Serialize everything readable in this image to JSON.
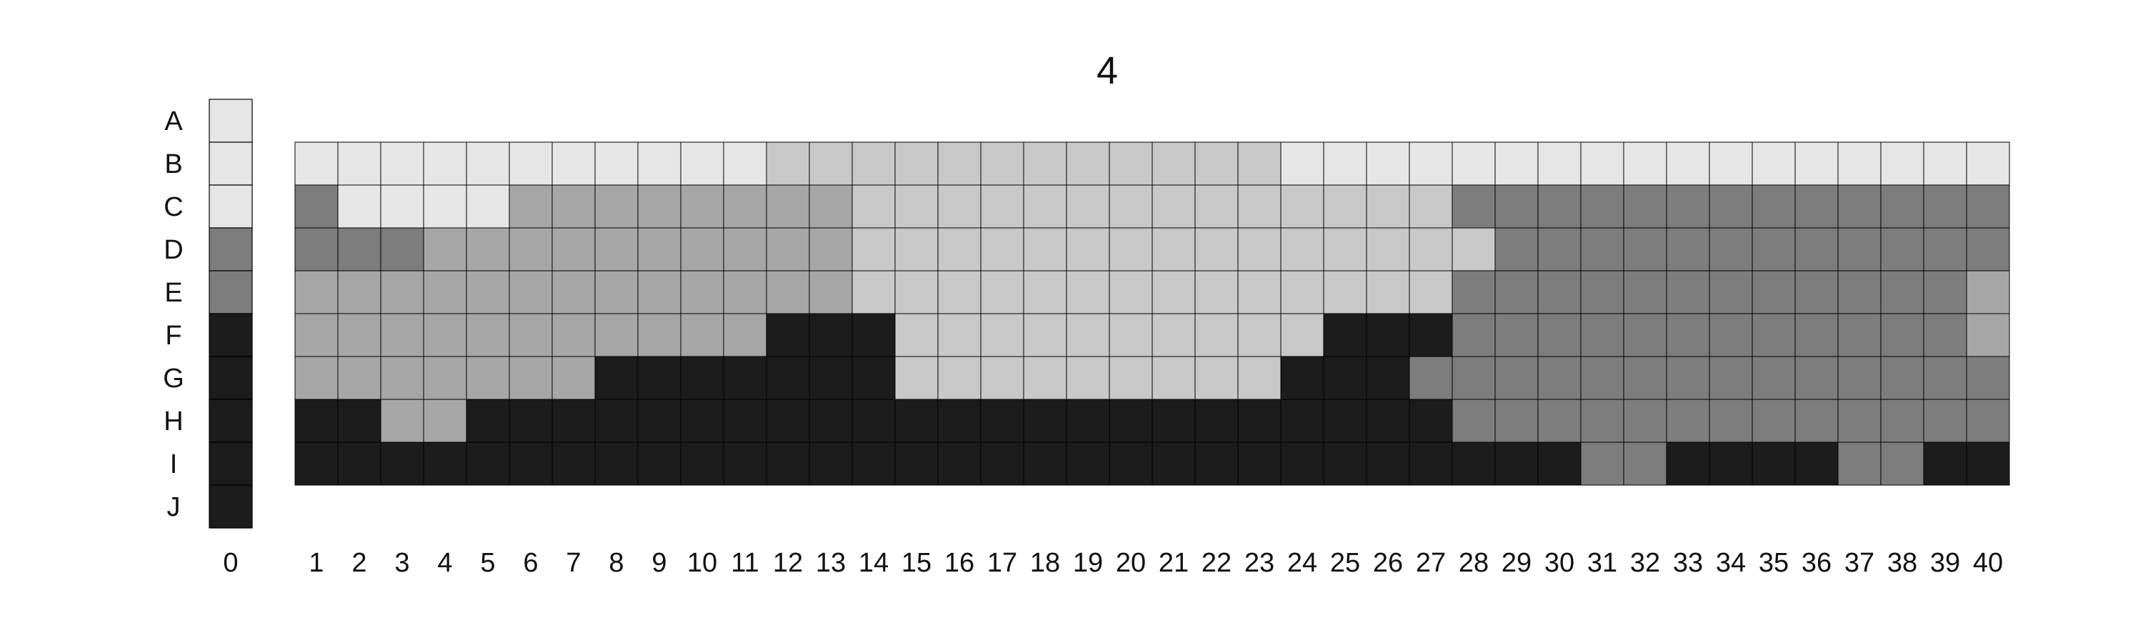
{
  "chart_data": {
    "type": "heatmap",
    "title": "4",
    "xlabel": "",
    "ylabel": "",
    "grid": true,
    "rows": [
      "A",
      "B",
      "C",
      "D",
      "E",
      "F",
      "G",
      "H",
      "I",
      "J"
    ],
    "columns": [
      0,
      1,
      2,
      3,
      4,
      5,
      6,
      7,
      8,
      9,
      10,
      11,
      12,
      13,
      14,
      15,
      16,
      17,
      18,
      19,
      20,
      21,
      22,
      23,
      24,
      25,
      26,
      27,
      28,
      29,
      30,
      31,
      32,
      33,
      34,
      35,
      36,
      37,
      38,
      39,
      40
    ],
    "levels": {
      "0": "#e6e6e6",
      "1": "#c8c8c8",
      "2": "#a6a6a6",
      "3": "#7d7d7d",
      "4": "#1c1c1c"
    },
    "reference_column": {
      "column": 0,
      "values": [
        0,
        0,
        0,
        3,
        3,
        4,
        4,
        4,
        4,
        4
      ]
    },
    "grid_rows": [
      "B",
      "C",
      "D",
      "E",
      "F",
      "G",
      "H",
      "I"
    ],
    "values": [
      [
        0,
        0,
        0,
        0,
        0,
        0,
        0,
        0,
        0,
        0,
        0,
        1,
        1,
        1,
        1,
        1,
        1,
        1,
        1,
        1,
        1,
        1,
        1,
        0,
        0,
        0,
        0,
        0,
        0,
        0,
        0,
        0,
        0,
        0,
        0,
        0,
        0,
        0,
        0,
        0
      ],
      [
        3,
        0,
        0,
        0,
        0,
        2,
        2,
        2,
        2,
        2,
        2,
        2,
        2,
        1,
        1,
        1,
        1,
        1,
        1,
        1,
        1,
        1,
        1,
        1,
        1,
        1,
        1,
        3,
        3,
        3,
        3,
        3,
        3,
        3,
        3,
        3,
        3,
        3,
        3,
        3
      ],
      [
        3,
        3,
        3,
        2,
        2,
        2,
        2,
        2,
        2,
        2,
        2,
        2,
        2,
        1,
        1,
        1,
        1,
        1,
        1,
        1,
        1,
        1,
        1,
        1,
        1,
        1,
        1,
        1,
        3,
        3,
        3,
        3,
        3,
        3,
        3,
        3,
        3,
        3,
        3,
        3
      ],
      [
        2,
        2,
        2,
        2,
        2,
        2,
        2,
        2,
        2,
        2,
        2,
        2,
        2,
        1,
        1,
        1,
        1,
        1,
        1,
        1,
        1,
        1,
        1,
        1,
        1,
        1,
        1,
        3,
        3,
        3,
        3,
        3,
        3,
        3,
        3,
        3,
        3,
        3,
        3,
        2
      ],
      [
        2,
        2,
        2,
        2,
        2,
        2,
        2,
        2,
        2,
        2,
        2,
        4,
        4,
        4,
        1,
        1,
        1,
        1,
        1,
        1,
        1,
        1,
        1,
        1,
        4,
        4,
        4,
        3,
        3,
        3,
        3,
        3,
        3,
        3,
        3,
        3,
        3,
        3,
        3,
        2
      ],
      [
        2,
        2,
        2,
        2,
        2,
        2,
        2,
        4,
        4,
        4,
        4,
        4,
        4,
        4,
        1,
        1,
        1,
        1,
        1,
        1,
        1,
        1,
        1,
        4,
        4,
        4,
        3,
        3,
        3,
        3,
        3,
        3,
        3,
        3,
        3,
        3,
        3,
        3,
        3,
        3
      ],
      [
        4,
        4,
        2,
        2,
        4,
        4,
        4,
        4,
        4,
        4,
        4,
        4,
        4,
        4,
        4,
        4,
        4,
        4,
        4,
        4,
        4,
        4,
        4,
        4,
        4,
        4,
        4,
        3,
        3,
        3,
        3,
        3,
        3,
        3,
        3,
        3,
        3,
        3,
        3,
        3
      ],
      [
        4,
        4,
        4,
        4,
        4,
        4,
        4,
        4,
        4,
        4,
        4,
        4,
        4,
        4,
        4,
        4,
        4,
        4,
        4,
        4,
        4,
        4,
        4,
        4,
        4,
        4,
        4,
        4,
        4,
        4,
        3,
        3,
        4,
        4,
        4,
        4,
        3,
        3,
        4,
        4
      ]
    ]
  }
}
